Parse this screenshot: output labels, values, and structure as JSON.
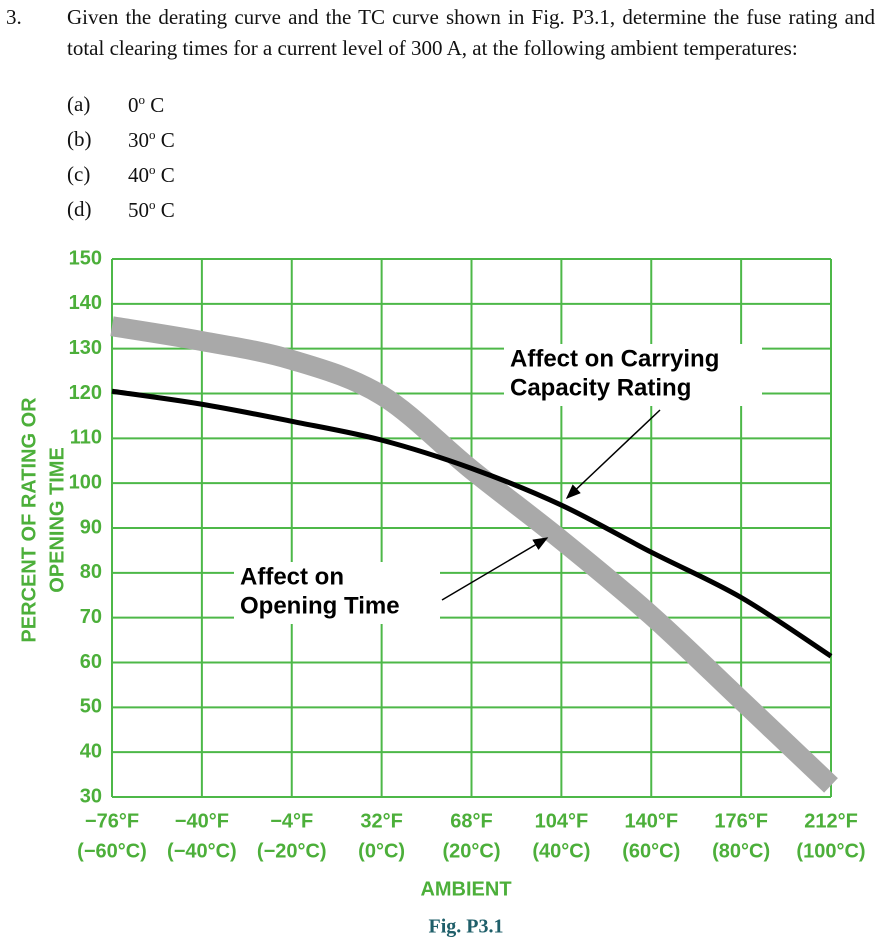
{
  "problem": {
    "number": "3.",
    "text": "Given the derating curve and the TC curve shown in Fig. P3.1, determine the fuse rating and total clearing times for a current level of 300 A, at the following ambient temperatures:",
    "items": [
      {
        "label": "(a)",
        "value": "0",
        "sup": "o",
        "unit": "C"
      },
      {
        "label": "(b)",
        "value": "30",
        "sup": "o",
        "unit": "C"
      },
      {
        "label": "(c)",
        "value": "40",
        "sup": "o",
        "unit": "C"
      },
      {
        "label": "(d)",
        "value": "50",
        "sup": "o",
        "unit": "C"
      }
    ]
  },
  "chart_data": {
    "type": "line",
    "caption": "Fig. P3.1",
    "xlabel": "AMBIENT",
    "ylabel": [
      "PERCENT OF RATING OR",
      "OPENING TIME"
    ],
    "x": [
      -60,
      -40,
      -20,
      0,
      20,
      40,
      60,
      80,
      100
    ],
    "xlim": [
      -60,
      100
    ],
    "xticks": [
      {
        "value": -60,
        "label": "−76°F",
        "label2": "(−60°C)"
      },
      {
        "value": -40,
        "label": "−40°F",
        "label2": "(−40°C)"
      },
      {
        "value": -20,
        "label": "−4°F",
        "label2": "(−20°C)"
      },
      {
        "value": 0,
        "label": "32°F",
        "label2": "(0°C)"
      },
      {
        "value": 20,
        "label": "68°F",
        "label2": "(20°C)"
      },
      {
        "value": 40,
        "label": "104°F",
        "label2": "(40°C)"
      },
      {
        "value": 60,
        "label": "140°F",
        "label2": "(60°C)"
      },
      {
        "value": 80,
        "label": "176°F",
        "label2": "(80°C)"
      },
      {
        "value": 100,
        "label": "212°F",
        "label2": "(100°C)"
      }
    ],
    "ylim": [
      30,
      150
    ],
    "yticks": [
      30,
      40,
      50,
      60,
      70,
      80,
      90,
      100,
      110,
      120,
      130,
      140,
      150
    ],
    "grid": true,
    "grid_color": "#4db848",
    "series": [
      {
        "color": "#a9a9a9",
        "width": 20,
        "values": [
          135,
          131.7,
          127.5,
          119.6,
          103,
          87.3,
          70.5,
          51.6,
          32.6
        ]
      },
      {
        "color": "#000000",
        "width": 5,
        "values": [
          120.5,
          117.6,
          113.8,
          109.6,
          103.3,
          95.1,
          84.6,
          74.5,
          61.4
        ]
      }
    ],
    "annotations": [
      {
        "lines": [
          "Affect on Carrying",
          "Capacity Rating"
        ]
      },
      {
        "lines": [
          "Affect on",
          "Opening Time"
        ]
      }
    ]
  }
}
